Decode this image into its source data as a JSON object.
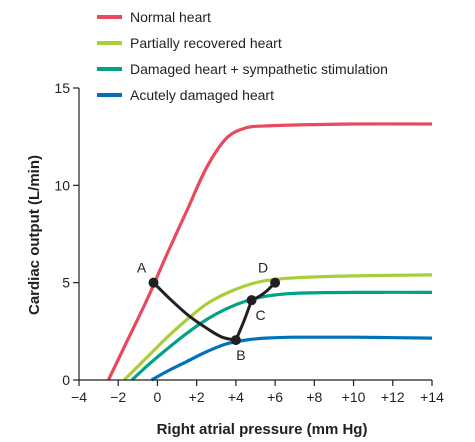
{
  "chart_data": {
    "type": "line",
    "xlabel": "Right atrial pressure (mm Hg)",
    "ylabel": "Cardiac output (L/min)",
    "xlim": [
      -4,
      14
    ],
    "ylim": [
      0,
      15
    ],
    "x_ticks": [
      -4,
      -2,
      0,
      2,
      4,
      6,
      8,
      10,
      12,
      14
    ],
    "x_tick_labels": [
      "−4",
      "−2",
      "0",
      "+2",
      "+4",
      "+6",
      "+8",
      "+10",
      "+12",
      "+14"
    ],
    "y_ticks": [
      0,
      5,
      10,
      15
    ],
    "y_tick_labels": [
      "0",
      "5",
      "10",
      "15"
    ],
    "grid": false,
    "legend_position": "top-left",
    "series": [
      {
        "name": "Normal heart",
        "color": "#e8495f",
        "points": [
          [
            -2.5,
            0
          ],
          [
            -1.5,
            2.1
          ],
          [
            -0.5,
            4.2
          ],
          [
            0.5,
            6.5
          ],
          [
            1.5,
            8.7
          ],
          [
            2.5,
            10.9
          ],
          [
            3.5,
            12.4
          ],
          [
            4.5,
            12.95
          ],
          [
            5.5,
            13.05
          ],
          [
            7,
            13.1
          ],
          [
            10,
            13.15
          ],
          [
            14,
            13.15
          ]
        ]
      },
      {
        "name": "Partially recovered heart",
        "color": "#a9cf38",
        "points": [
          [
            -1.7,
            0
          ],
          [
            -0.5,
            1.2
          ],
          [
            0.5,
            2.2
          ],
          [
            1.5,
            3.1
          ],
          [
            2.5,
            3.9
          ],
          [
            3.5,
            4.45
          ],
          [
            4.5,
            4.85
          ],
          [
            5.5,
            5.1
          ],
          [
            7,
            5.25
          ],
          [
            10,
            5.35
          ],
          [
            14,
            5.4
          ]
        ]
      },
      {
        "name": "Damaged heart + sympathetic stimulation",
        "color": "#00a383",
        "points": [
          [
            -1.3,
            0
          ],
          [
            -0.5,
            0.75
          ],
          [
            0.5,
            1.6
          ],
          [
            1.5,
            2.4
          ],
          [
            2.5,
            3.1
          ],
          [
            3.5,
            3.65
          ],
          [
            4.5,
            4.05
          ],
          [
            5.5,
            4.3
          ],
          [
            7,
            4.45
          ],
          [
            10,
            4.5
          ],
          [
            14,
            4.5
          ]
        ]
      },
      {
        "name": "Acutely damaged heart",
        "color": "#0072bc",
        "points": [
          [
            -0.3,
            0
          ],
          [
            0.5,
            0.45
          ],
          [
            1.5,
            0.95
          ],
          [
            2.5,
            1.45
          ],
          [
            3.5,
            1.85
          ],
          [
            4.5,
            2.05
          ],
          [
            5.5,
            2.15
          ],
          [
            7,
            2.2
          ],
          [
            10,
            2.2
          ],
          [
            14,
            2.15
          ]
        ]
      }
    ],
    "transition_path": {
      "color": "#231f20",
      "segments": [
        [
          [
            -0.2,
            5.0
          ],
          [
            0.6,
            4.2
          ],
          [
            1.6,
            3.3
          ],
          [
            2.6,
            2.6
          ],
          [
            3.3,
            2.2
          ],
          [
            4.0,
            2.05
          ]
        ],
        [
          [
            4.0,
            2.05
          ],
          [
            4.4,
            3.0
          ],
          [
            4.8,
            4.1
          ]
        ],
        [
          [
            4.8,
            4.1
          ],
          [
            5.2,
            4.3
          ],
          [
            5.6,
            4.6
          ],
          [
            6.0,
            5.0
          ]
        ]
      ]
    },
    "labeled_points": [
      {
        "label": "A",
        "x": -0.2,
        "y": 5.0,
        "anchor": "upper-left"
      },
      {
        "label": "B",
        "x": 4.0,
        "y": 2.05,
        "anchor": "below"
      },
      {
        "label": "C",
        "x": 4.8,
        "y": 4.1,
        "anchor": "lower-right"
      },
      {
        "label": "D",
        "x": 6.0,
        "y": 5.0,
        "anchor": "upper-left"
      }
    ]
  }
}
